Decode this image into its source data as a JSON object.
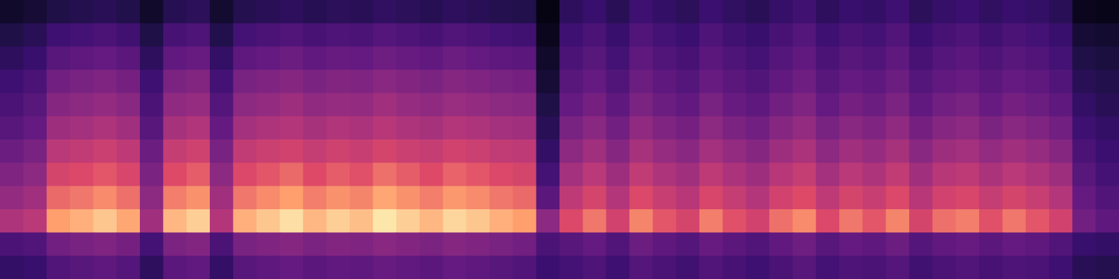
{
  "chart_data": {
    "type": "heatmap",
    "xlim": [
      0,
      48
    ],
    "ylim": [
      0,
      12
    ],
    "zlim": [
      0,
      100
    ],
    "tick_labels": false,
    "cells": [
      [
        8,
        10,
        14,
        16,
        18,
        15,
        8,
        17,
        19,
        9,
        16,
        18,
        20,
        17,
        19,
        18,
        21,
        19,
        17,
        20,
        18,
        16,
        15,
        3,
        20,
        24,
        18,
        26,
        22,
        19,
        25,
        21,
        18,
        23,
        27,
        20,
        24,
        22,
        26,
        19,
        23,
        25,
        21,
        24,
        22,
        18,
        5,
        4
      ],
      [
        14,
        18,
        26,
        28,
        30,
        27,
        14,
        29,
        31,
        15,
        28,
        30,
        32,
        29,
        31,
        30,
        33,
        31,
        29,
        32,
        30,
        28,
        27,
        5,
        26,
        30,
        24,
        32,
        28,
        25,
        31,
        27,
        24,
        29,
        33,
        26,
        30,
        28,
        32,
        25,
        29,
        31,
        27,
        30,
        28,
        24,
        10,
        9
      ],
      [
        20,
        24,
        34,
        36,
        38,
        35,
        20,
        37,
        39,
        22,
        36,
        38,
        40,
        37,
        39,
        38,
        41,
        39,
        37,
        40,
        38,
        36,
        35,
        8,
        30,
        34,
        28,
        36,
        32,
        29,
        35,
        31,
        28,
        33,
        37,
        30,
        34,
        32,
        36,
        29,
        33,
        35,
        31,
        34,
        32,
        28,
        14,
        12
      ],
      [
        26,
        30,
        42,
        44,
        46,
        43,
        26,
        45,
        47,
        28,
        44,
        46,
        48,
        45,
        47,
        46,
        49,
        47,
        45,
        48,
        46,
        44,
        43,
        10,
        34,
        38,
        32,
        40,
        36,
        33,
        39,
        35,
        32,
        37,
        41,
        34,
        38,
        36,
        40,
        33,
        37,
        39,
        35,
        38,
        36,
        32,
        18,
        15
      ],
      [
        30,
        34,
        48,
        50,
        52,
        49,
        30,
        51,
        53,
        33,
        50,
        52,
        55,
        51,
        53,
        52,
        56,
        53,
        51,
        54,
        52,
        50,
        49,
        14,
        38,
        43,
        36,
        45,
        40,
        37,
        44,
        39,
        36,
        42,
        46,
        38,
        43,
        40,
        45,
        37,
        42,
        44,
        39,
        43,
        40,
        36,
        22,
        18
      ],
      [
        34,
        38,
        55,
        57,
        60,
        56,
        34,
        58,
        61,
        38,
        57,
        60,
        62,
        58,
        61,
        59,
        63,
        60,
        58,
        62,
        60,
        57,
        56,
        18,
        44,
        49,
        42,
        51,
        46,
        43,
        50,
        45,
        42,
        48,
        52,
        44,
        49,
        46,
        51,
        43,
        48,
        50,
        45,
        49,
        46,
        42,
        26,
        22
      ],
      [
        40,
        44,
        64,
        66,
        69,
        65,
        40,
        67,
        70,
        44,
        66,
        69,
        71,
        67,
        70,
        68,
        72,
        69,
        67,
        71,
        69,
        66,
        65,
        22,
        50,
        56,
        48,
        58,
        53,
        49,
        57,
        52,
        48,
        55,
        59,
        50,
        56,
        53,
        58,
        49,
        55,
        57,
        52,
        56,
        53,
        48,
        30,
        25
      ],
      [
        46,
        50,
        72,
        74,
        77,
        73,
        45,
        75,
        78,
        50,
        74,
        77,
        80,
        75,
        78,
        76,
        81,
        78,
        75,
        79,
        77,
        74,
        72,
        28,
        57,
        64,
        55,
        66,
        60,
        56,
        65,
        59,
        55,
        63,
        67,
        57,
        64,
        60,
        66,
        56,
        63,
        65,
        59,
        64,
        60,
        55,
        34,
        28
      ],
      [
        52,
        56,
        80,
        82,
        85,
        81,
        50,
        83,
        86,
        56,
        82,
        85,
        88,
        83,
        86,
        84,
        89,
        86,
        83,
        87,
        85,
        82,
        80,
        35,
        65,
        72,
        62,
        74,
        68,
        63,
        73,
        67,
        62,
        71,
        75,
        65,
        72,
        68,
        74,
        63,
        71,
        73,
        67,
        72,
        68,
        62,
        38,
        32
      ],
      [
        60,
        64,
        88,
        90,
        93,
        89,
        56,
        91,
        94,
        62,
        90,
        93,
        96,
        91,
        94,
        92,
        97,
        94,
        91,
        95,
        93,
        90,
        88,
        50,
        74,
        82,
        71,
        84,
        77,
        72,
        83,
        76,
        71,
        81,
        85,
        74,
        82,
        77,
        84,
        72,
        81,
        83,
        76,
        82,
        77,
        71,
        42,
        36
      ],
      [
        30,
        32,
        42,
        44,
        46,
        43,
        28,
        45,
        47,
        30,
        44,
        46,
        48,
        45,
        47,
        46,
        49,
        47,
        45,
        48,
        46,
        44,
        42,
        30,
        34,
        38,
        32,
        40,
        36,
        33,
        39,
        35,
        32,
        37,
        41,
        34,
        38,
        36,
        40,
        33,
        37,
        39,
        35,
        38,
        36,
        32,
        24,
        22
      ],
      [
        22,
        24,
        32,
        34,
        36,
        33,
        20,
        35,
        37,
        22,
        34,
        36,
        38,
        35,
        37,
        36,
        39,
        37,
        35,
        38,
        36,
        34,
        32,
        25,
        28,
        31,
        26,
        33,
        30,
        27,
        32,
        29,
        26,
        30,
        34,
        28,
        31,
        30,
        33,
        27,
        30,
        32,
        29,
        31,
        30,
        26,
        18,
        16
      ]
    ]
  }
}
